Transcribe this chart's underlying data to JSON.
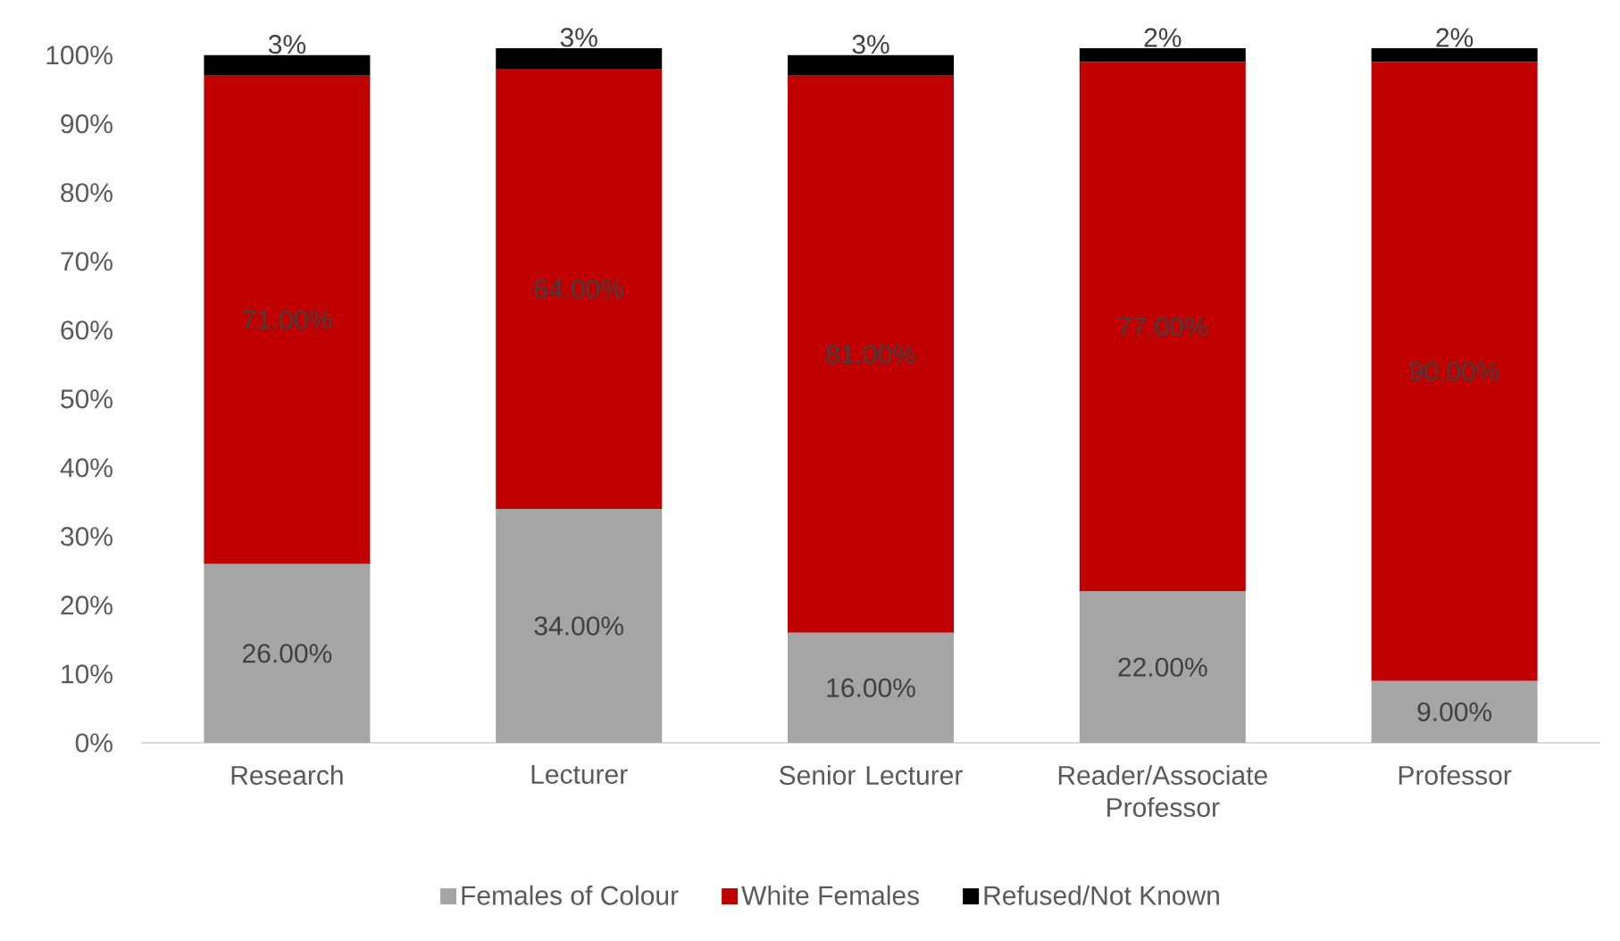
{
  "chart_data": {
    "type": "bar",
    "stacked": true,
    "categories": [
      "Research",
      "Lecturer",
      "Senior Lecturer",
      "Reader/Associate Professor",
      "Professor"
    ],
    "series": [
      {
        "name": "Females of Colour",
        "color": "#a5a5a5",
        "values": [
          26,
          34,
          16,
          22,
          9
        ],
        "value_labels": [
          "26.00%",
          "34.00%",
          "16.00%",
          "22.00%",
          "9.00%"
        ]
      },
      {
        "name": "White Females",
        "color": "#c00000",
        "values": [
          71,
          64,
          81,
          77,
          90
        ],
        "value_labels": [
          "71.00%",
          "64.00%",
          "81.00%",
          "77.00%",
          "90.00%"
        ]
      },
      {
        "name": "Refused/Not Known",
        "color": "#000000",
        "values": [
          3,
          3,
          3,
          2,
          2
        ],
        "value_labels": [
          "3%",
          "3%",
          "3%",
          "2%",
          "2%"
        ]
      }
    ],
    "ylim": [
      0,
      101
    ],
    "yticks": [
      {
        "value": 0,
        "label": "0%"
      },
      {
        "value": 10,
        "label": "10%"
      },
      {
        "value": 20,
        "label": "20%"
      },
      {
        "value": 30,
        "label": "30%"
      },
      {
        "value": 40,
        "label": "40%"
      },
      {
        "value": 50,
        "label": "50%"
      },
      {
        "value": 60,
        "label": "60%"
      },
      {
        "value": 70,
        "label": "70%"
      },
      {
        "value": 80,
        "label": "80%"
      },
      {
        "value": 90,
        "label": "90%"
      },
      {
        "value": 100,
        "label": "100%"
      }
    ],
    "legend": "bottom"
  }
}
